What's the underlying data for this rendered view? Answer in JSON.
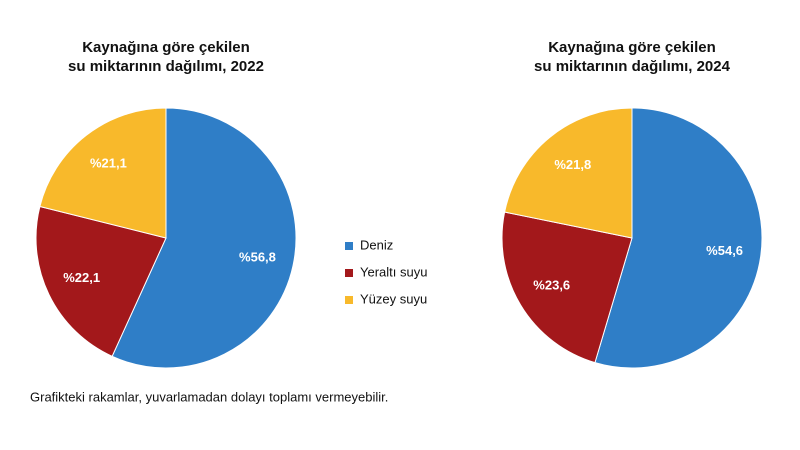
{
  "chart_data": [
    {
      "type": "pie",
      "title": "Kaynağına göre çekilen\nsu miktarının dağılımı, 2022",
      "values": [
        56.8,
        22.1,
        21.1
      ],
      "value_labels": [
        "%56,8",
        "%22,1",
        "%21,1"
      ]
    },
    {
      "type": "pie",
      "title": "Kaynağına göre çekilen\nsu miktarının dağılımı, 2024",
      "values": [
        54.6,
        23.6,
        21.8
      ],
      "value_labels": [
        "%54,6",
        "%23,6",
        "%21,8"
      ]
    }
  ],
  "legend": {
    "categories": [
      "Deniz",
      "Yeraltı suyu",
      "Yüzey suyu"
    ],
    "colors": [
      "#2f7ec7",
      "#a3181b",
      "#f8b92b"
    ]
  },
  "footnote": "Grafikteki rakamlar, yuvarlamadan dolayı toplamı vermeyebilir."
}
